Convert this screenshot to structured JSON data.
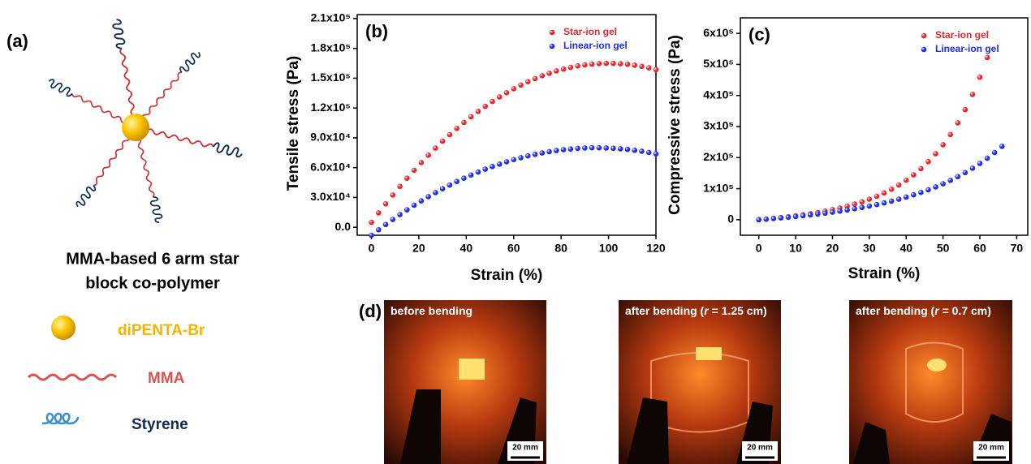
{
  "panel_a": {
    "label": "(a)",
    "caption": [
      "MMA-based 6 arm star",
      "block co-polymer"
    ],
    "legend": [
      "diPENTA-Br",
      "MMA",
      "Styrene"
    ]
  },
  "chart_data": [
    {
      "type": "scatter",
      "panel_label": "(b)",
      "x_label": "Strain (%)",
      "y_label": "Tensile stress (Pa)",
      "xlim": [
        -6,
        120
      ],
      "xticks": [
        0,
        20,
        40,
        60,
        80,
        100,
        120
      ],
      "ylim": [
        -8000,
        214000
      ],
      "yticks": [
        {
          "value": 0,
          "label": "0.0"
        },
        {
          "value": 30000,
          "label": "3.0x10⁴"
        },
        {
          "value": 60000,
          "label": "6.0x10⁴"
        },
        {
          "value": 90000,
          "label": "9.0x10⁴"
        },
        {
          "value": 120000,
          "label": "1.2x10⁵"
        },
        {
          "value": 150000,
          "label": "1.5x10⁵"
        },
        {
          "value": 180000,
          "label": "1.8x10⁵"
        },
        {
          "value": 210000,
          "label": "2.1x10⁵"
        }
      ],
      "legend": "upper right",
      "series": [
        {
          "name": "Star-ion gel",
          "color": "#e8262b",
          "x": [
            0,
            3,
            6,
            9,
            12,
            15,
            18,
            21,
            24,
            27,
            30,
            33,
            36,
            39,
            42,
            45,
            48,
            51,
            54,
            57,
            60,
            63,
            66,
            69,
            72,
            75,
            78,
            81,
            84,
            87,
            90,
            93,
            96,
            99,
            102,
            105,
            108,
            111,
            114,
            117,
            120
          ],
          "values": [
            5000,
            14500,
            23600,
            32500,
            41100,
            49400,
            57400,
            65100,
            72600,
            79700,
            86600,
            93200,
            99500,
            105500,
            111200,
            116600,
            121700,
            126600,
            131100,
            135400,
            139400,
            143100,
            146500,
            149600,
            152500,
            155000,
            157300,
            159200,
            160900,
            162300,
            163400,
            164200,
            164700,
            165000,
            164900,
            164600,
            164000,
            163100,
            161900,
            160400,
            158600
          ]
        },
        {
          "name": "Linear-ion gel",
          "color": "#1f2ee6",
          "x": [
            0,
            3,
            6,
            9,
            12,
            15,
            18,
            21,
            24,
            27,
            30,
            33,
            36,
            39,
            42,
            45,
            48,
            51,
            54,
            57,
            60,
            63,
            66,
            69,
            72,
            75,
            78,
            81,
            84,
            87,
            90,
            93,
            96,
            99,
            102,
            105,
            108,
            111,
            114,
            117,
            120
          ],
          "values": [
            -8000,
            -2500,
            2800,
            7900,
            12800,
            17600,
            22200,
            26600,
            30800,
            34900,
            38800,
            42500,
            46100,
            49400,
            52600,
            55600,
            58500,
            61100,
            63600,
            65900,
            68100,
            70000,
            71800,
            73400,
            74800,
            76100,
            77200,
            78100,
            78800,
            79400,
            79800,
            80000,
            80000,
            79800,
            79500,
            79000,
            78400,
            77500,
            76500,
            75300,
            73900
          ]
        }
      ]
    },
    {
      "type": "scatter",
      "panel_label": "(c)",
      "x_label": "Strain (%)",
      "y_label": "Compressive stress (Pa)",
      "xlim": [
        -5,
        73
      ],
      "xticks": [
        0,
        10,
        20,
        30,
        40,
        50,
        60,
        70
      ],
      "ylim": [
        -50000,
        650000
      ],
      "yticks": [
        0,
        {
          "value": 100000,
          "label": "1x10⁵"
        },
        {
          "value": 200000,
          "label": "2x10⁵"
        },
        {
          "value": 300000,
          "label": "3x10⁵"
        },
        {
          "value": 400000,
          "label": "4x10⁵"
        },
        {
          "value": 500000,
          "label": "5x10⁵"
        },
        {
          "value": 600000,
          "label": "6x10⁵"
        }
      ],
      "legend": "upper right",
      "series": [
        {
          "name": "Star-ion gel",
          "color": "#e8262b",
          "x": [
            0,
            2,
            4,
            6,
            8,
            10,
            12,
            14,
            16,
            18,
            20,
            22,
            24,
            26,
            28,
            30,
            32,
            34,
            36,
            38,
            40,
            42,
            44,
            46,
            48,
            50,
            52,
            54,
            56,
            58,
            60,
            62
          ],
          "values": [
            0,
            2100,
            4400,
            6900,
            9600,
            12600,
            15800,
            19300,
            23200,
            27600,
            32400,
            37700,
            43600,
            50300,
            57700,
            66100,
            75500,
            86200,
            98200,
            111800,
            127100,
            144600,
            164300,
            186800,
            212300,
            241300,
            274200,
            311800,
            354500,
            403300,
            458800,
            522100
          ]
        },
        {
          "name": "Linear-ion gel",
          "color": "#1f2ee6",
          "x": [
            0,
            2,
            4,
            6,
            8,
            10,
            12,
            14,
            16,
            18,
            20,
            22,
            24,
            26,
            28,
            30,
            32,
            34,
            36,
            38,
            40,
            42,
            44,
            46,
            48,
            50,
            52,
            54,
            56,
            58,
            60,
            62,
            64,
            66
          ],
          "values": [
            0,
            1800,
            3800,
            5800,
            8000,
            10300,
            12800,
            15400,
            18200,
            21100,
            24300,
            27700,
            31300,
            35300,
            39500,
            44000,
            48900,
            54200,
            59900,
            66100,
            72800,
            80000,
            87900,
            96400,
            105700,
            115800,
            126700,
            138700,
            151600,
            165800,
            181200,
            198000,
            216400,
            236300
          ]
        }
      ]
    }
  ],
  "panel_d": {
    "label": "(d)",
    "photos": [
      {
        "caption": [
          "before bending"
        ],
        "scale_bar": "20 mm"
      },
      {
        "caption": [
          "after bending (",
          "r",
          " = 1.25 cm)"
        ],
        "scale_bar": "20 mm"
      },
      {
        "caption": [
          "after bending (",
          "r",
          " = 0.7 cm)"
        ],
        "scale_bar": "20 mm"
      }
    ]
  }
}
